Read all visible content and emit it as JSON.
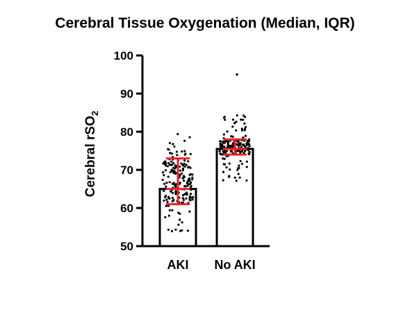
{
  "chart_data": {
    "type": "bar",
    "title": "Cerebral Tissue Oxygenation (Median, IQR)",
    "ylabel": "Cerebral rSO",
    "ylabel_subscript": "2",
    "xlabel": "",
    "categories": [
      "AKI",
      "No AKI"
    ],
    "values": [
      65,
      75.5
    ],
    "iqr": [
      [
        61,
        73
      ],
      [
        74,
        78
      ]
    ],
    "ylim": [
      50,
      100
    ],
    "yticks": [
      50,
      60,
      70,
      80,
      90,
      100
    ],
    "points_range": [
      [
        53.5,
        79.5
      ],
      [
        67,
        85
      ]
    ],
    "outliers": [
      [],
      [
        95
      ]
    ],
    "colors": {
      "bar_fill": "#ffffff",
      "bar_edge": "#000000",
      "points": "#000000",
      "error_bar": "#e8262b"
    },
    "grid": false,
    "legend": "none"
  }
}
